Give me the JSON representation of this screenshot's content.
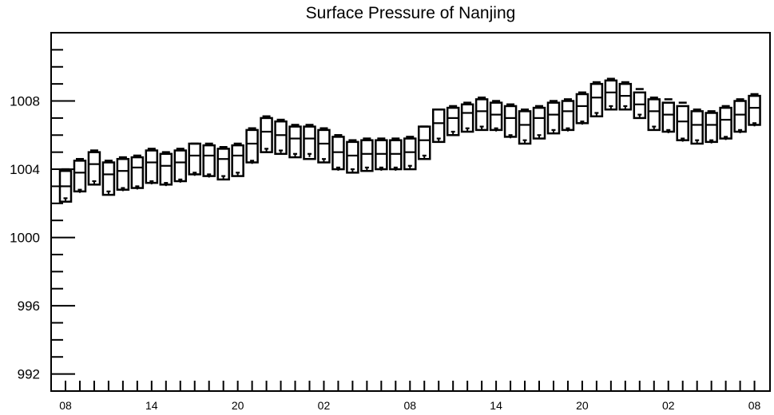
{
  "chart_data": {
    "type": "box",
    "title": "Surface Pressure of Nanjing",
    "xlabel": "",
    "ylabel": "",
    "ylim": [
      991.0,
      1012.0
    ],
    "y_ticks": [
      992,
      996,
      1000,
      1004,
      1008
    ],
    "y_tick_labels": [
      "992",
      "996",
      "1000",
      "1004",
      "1008"
    ],
    "x_tick_labels": [
      "08",
      "14",
      "20",
      "02",
      "08",
      "14",
      "20",
      "02",
      "08"
    ],
    "x_label_every": 6,
    "legend": "none",
    "grid": false,
    "colors": {
      "line": "#000000",
      "background": "#ffffff"
    },
    "series": [
      {
        "lower_whisker": [
          1002.3,
          1002.8,
          1003.3,
          1002.7,
          1002.9,
          1003.0,
          1003.3,
          1003.2,
          1003.4,
          1003.8,
          1003.7,
          1003.6,
          1003.8,
          1004.5,
          1005.2,
          1005.1,
          1004.9,
          1004.9,
          1004.6,
          1004.1,
          1004.0,
          1004.1,
          1004.1,
          1004.1,
          1004.2,
          1004.8,
          1005.8,
          1006.2,
          1006.4,
          1006.5,
          1006.4,
          1006.0,
          1005.7,
          1006.0,
          1006.3,
          1006.4,
          1006.8,
          1007.3,
          1007.7,
          1007.7,
          1007.2,
          1006.5,
          1006.3,
          1005.8,
          1005.7,
          1005.7,
          1005.9,
          1006.3,
          1006.7
        ],
        "q1": [
          1002.1,
          1002.7,
          1003.1,
          1002.5,
          1002.8,
          1002.9,
          1003.2,
          1003.1,
          1003.3,
          1003.7,
          1003.6,
          1003.4,
          1003.6,
          1004.4,
          1005.0,
          1004.9,
          1004.7,
          1004.6,
          1004.4,
          1004.0,
          1003.8,
          1003.9,
          1004.0,
          1004.0,
          1004.0,
          1004.6,
          1005.6,
          1006.0,
          1006.2,
          1006.3,
          1006.3,
          1005.9,
          1005.5,
          1005.8,
          1006.1,
          1006.3,
          1006.7,
          1007.1,
          1007.5,
          1007.5,
          1007.0,
          1006.3,
          1006.2,
          1005.7,
          1005.5,
          1005.6,
          1005.8,
          1006.2,
          1006.6
        ],
        "median": [
          1003.0,
          1003.8,
          1004.3,
          1003.7,
          1003.9,
          1004.1,
          1004.4,
          1004.2,
          1004.4,
          1004.8,
          1004.8,
          1004.6,
          1004.8,
          1005.5,
          1006.2,
          1006.0,
          1005.8,
          1005.8,
          1005.5,
          1005.0,
          1004.8,
          1004.9,
          1004.9,
          1004.9,
          1005.0,
          1005.7,
          1006.7,
          1007.0,
          1007.3,
          1007.4,
          1007.2,
          1007.0,
          1006.6,
          1007.0,
          1007.2,
          1007.4,
          1007.7,
          1008.2,
          1008.5,
          1008.3,
          1007.8,
          1007.4,
          1007.2,
          1006.8,
          1006.6,
          1006.6,
          1006.9,
          1007.2,
          1007.6
        ],
        "q3": [
          1003.9,
          1004.5,
          1005.0,
          1004.4,
          1004.6,
          1004.7,
          1005.1,
          1004.9,
          1005.1,
          1005.5,
          1005.4,
          1005.2,
          1005.4,
          1006.3,
          1007.0,
          1006.8,
          1006.5,
          1006.5,
          1006.3,
          1005.9,
          1005.6,
          1005.7,
          1005.7,
          1005.7,
          1005.8,
          1006.5,
          1007.5,
          1007.6,
          1007.8,
          1008.1,
          1007.9,
          1007.7,
          1007.4,
          1007.6,
          1007.9,
          1008.0,
          1008.4,
          1009.0,
          1009.2,
          1009.0,
          1008.5,
          1008.1,
          1007.9,
          1007.7,
          1007.4,
          1007.3,
          1007.6,
          1008.0,
          1008.3
        ],
        "upper_whisker": [
          1004.0,
          1004.6,
          1005.1,
          1004.5,
          1004.7,
          1004.8,
          1005.2,
          1005.0,
          1005.2,
          1005.5,
          1005.5,
          1005.3,
          1005.5,
          1006.4,
          1007.1,
          1006.9,
          1006.6,
          1006.6,
          1006.4,
          1006.0,
          1005.7,
          1005.8,
          1005.8,
          1005.8,
          1005.9,
          1006.5,
          1007.5,
          1007.7,
          1007.9,
          1008.2,
          1008.0,
          1007.8,
          1007.5,
          1007.7,
          1008.0,
          1008.1,
          1008.5,
          1009.1,
          1009.3,
          1009.1,
          1008.7,
          1008.2,
          1008.1,
          1007.9,
          1007.5,
          1007.4,
          1007.7,
          1008.1,
          1008.4
        ]
      }
    ]
  }
}
